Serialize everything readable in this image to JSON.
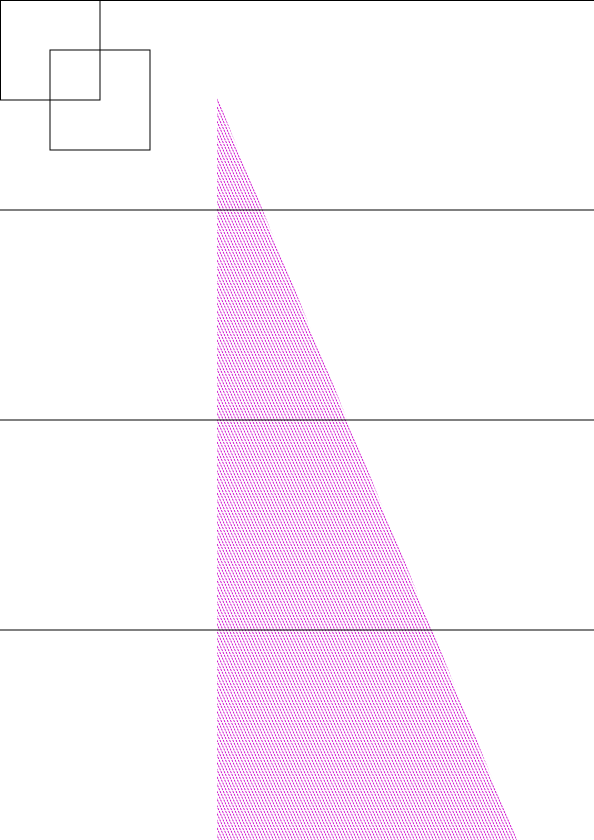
{
  "page": {
    "background_color": "#ffffff"
  },
  "colors": {
    "line": "#000000",
    "hatch": "#cc00cc"
  },
  "shapes": {
    "squares": [
      "outline-square",
      "outline-square"
    ],
    "horizontal_lines": [
      "horizontal-rule",
      "horizontal-rule",
      "horizontal-rule",
      "horizontal-rule"
    ],
    "triangle": "hatched-triangle"
  }
}
